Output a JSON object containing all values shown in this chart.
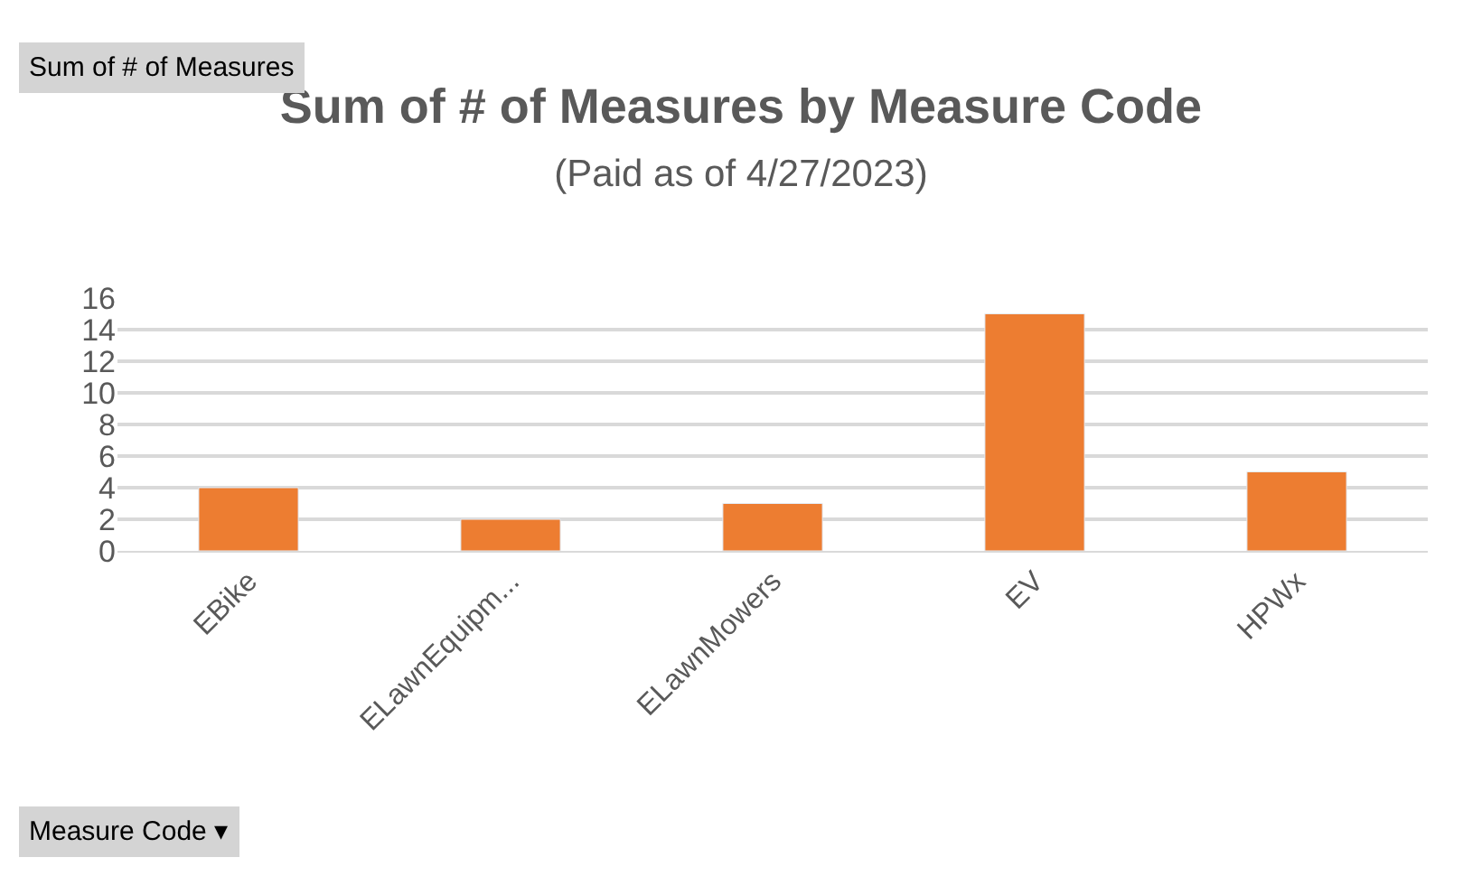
{
  "chart_data": {
    "type": "bar",
    "title": "Sum of # of Measures by Measure Code",
    "subtitle": "(Paid as of 4/27/2023)",
    "categories": [
      "EBike",
      "ELawnEquipm...",
      "ELawnMowers",
      "EV",
      "HPWx"
    ],
    "values": [
      4,
      2,
      3,
      15,
      5
    ],
    "color": "#ed7d31",
    "ylim": [
      0,
      16
    ],
    "yticks": [
      0,
      2,
      4,
      6,
      8,
      10,
      12,
      14,
      16
    ],
    "grid": "y",
    "annotations": [
      "Sum of # of Measures",
      "Measure Code ▾"
    ]
  }
}
